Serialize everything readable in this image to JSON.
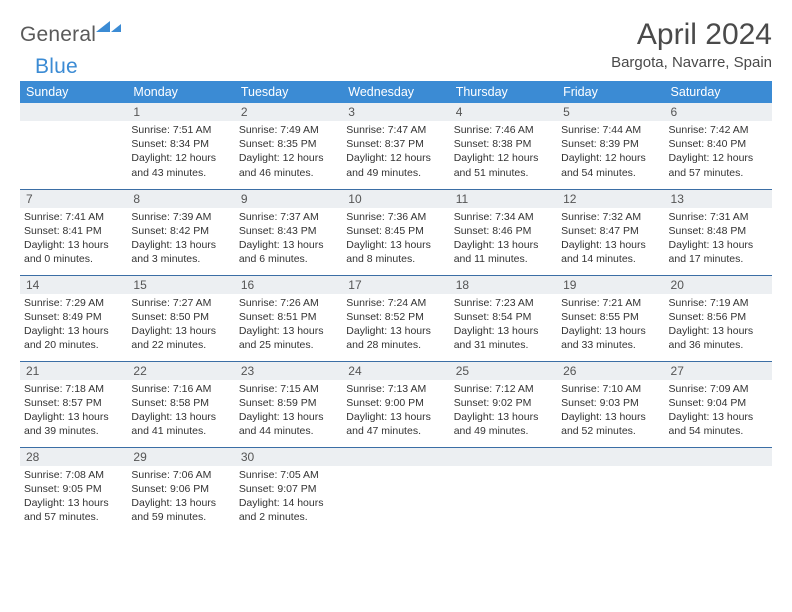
{
  "brand": {
    "text_general": "General",
    "text_blue": "Blue",
    "mark_color": "#3b8bd4"
  },
  "header": {
    "title": "April 2024",
    "subtitle": "Bargota, Navarre, Spain"
  },
  "colors": {
    "header_bg": "#3b8bd4",
    "header_text": "#ffffff",
    "daynum_bg": "#eceff2",
    "row_border": "#3b6ea5",
    "page_bg": "#ffffff",
    "body_text": "#333333",
    "title_text": "#4a4a4a"
  },
  "typography": {
    "title_fontsize": 30,
    "subtitle_fontsize": 15,
    "dayhead_fontsize": 12.5,
    "daynum_fontsize": 12,
    "content_fontsize": 10.5
  },
  "weekdays": [
    "Sunday",
    "Monday",
    "Tuesday",
    "Wednesday",
    "Thursday",
    "Friday",
    "Saturday"
  ],
  "weeks": [
    [
      {
        "day": "",
        "sunrise": "",
        "sunset": "",
        "daylight": ""
      },
      {
        "day": "1",
        "sunrise": "Sunrise: 7:51 AM",
        "sunset": "Sunset: 8:34 PM",
        "daylight": "Daylight: 12 hours and 43 minutes."
      },
      {
        "day": "2",
        "sunrise": "Sunrise: 7:49 AM",
        "sunset": "Sunset: 8:35 PM",
        "daylight": "Daylight: 12 hours and 46 minutes."
      },
      {
        "day": "3",
        "sunrise": "Sunrise: 7:47 AM",
        "sunset": "Sunset: 8:37 PM",
        "daylight": "Daylight: 12 hours and 49 minutes."
      },
      {
        "day": "4",
        "sunrise": "Sunrise: 7:46 AM",
        "sunset": "Sunset: 8:38 PM",
        "daylight": "Daylight: 12 hours and 51 minutes."
      },
      {
        "day": "5",
        "sunrise": "Sunrise: 7:44 AM",
        "sunset": "Sunset: 8:39 PM",
        "daylight": "Daylight: 12 hours and 54 minutes."
      },
      {
        "day": "6",
        "sunrise": "Sunrise: 7:42 AM",
        "sunset": "Sunset: 8:40 PM",
        "daylight": "Daylight: 12 hours and 57 minutes."
      }
    ],
    [
      {
        "day": "7",
        "sunrise": "Sunrise: 7:41 AM",
        "sunset": "Sunset: 8:41 PM",
        "daylight": "Daylight: 13 hours and 0 minutes."
      },
      {
        "day": "8",
        "sunrise": "Sunrise: 7:39 AM",
        "sunset": "Sunset: 8:42 PM",
        "daylight": "Daylight: 13 hours and 3 minutes."
      },
      {
        "day": "9",
        "sunrise": "Sunrise: 7:37 AM",
        "sunset": "Sunset: 8:43 PM",
        "daylight": "Daylight: 13 hours and 6 minutes."
      },
      {
        "day": "10",
        "sunrise": "Sunrise: 7:36 AM",
        "sunset": "Sunset: 8:45 PM",
        "daylight": "Daylight: 13 hours and 8 minutes."
      },
      {
        "day": "11",
        "sunrise": "Sunrise: 7:34 AM",
        "sunset": "Sunset: 8:46 PM",
        "daylight": "Daylight: 13 hours and 11 minutes."
      },
      {
        "day": "12",
        "sunrise": "Sunrise: 7:32 AM",
        "sunset": "Sunset: 8:47 PM",
        "daylight": "Daylight: 13 hours and 14 minutes."
      },
      {
        "day": "13",
        "sunrise": "Sunrise: 7:31 AM",
        "sunset": "Sunset: 8:48 PM",
        "daylight": "Daylight: 13 hours and 17 minutes."
      }
    ],
    [
      {
        "day": "14",
        "sunrise": "Sunrise: 7:29 AM",
        "sunset": "Sunset: 8:49 PM",
        "daylight": "Daylight: 13 hours and 20 minutes."
      },
      {
        "day": "15",
        "sunrise": "Sunrise: 7:27 AM",
        "sunset": "Sunset: 8:50 PM",
        "daylight": "Daylight: 13 hours and 22 minutes."
      },
      {
        "day": "16",
        "sunrise": "Sunrise: 7:26 AM",
        "sunset": "Sunset: 8:51 PM",
        "daylight": "Daylight: 13 hours and 25 minutes."
      },
      {
        "day": "17",
        "sunrise": "Sunrise: 7:24 AM",
        "sunset": "Sunset: 8:52 PM",
        "daylight": "Daylight: 13 hours and 28 minutes."
      },
      {
        "day": "18",
        "sunrise": "Sunrise: 7:23 AM",
        "sunset": "Sunset: 8:54 PM",
        "daylight": "Daylight: 13 hours and 31 minutes."
      },
      {
        "day": "19",
        "sunrise": "Sunrise: 7:21 AM",
        "sunset": "Sunset: 8:55 PM",
        "daylight": "Daylight: 13 hours and 33 minutes."
      },
      {
        "day": "20",
        "sunrise": "Sunrise: 7:19 AM",
        "sunset": "Sunset: 8:56 PM",
        "daylight": "Daylight: 13 hours and 36 minutes."
      }
    ],
    [
      {
        "day": "21",
        "sunrise": "Sunrise: 7:18 AM",
        "sunset": "Sunset: 8:57 PM",
        "daylight": "Daylight: 13 hours and 39 minutes."
      },
      {
        "day": "22",
        "sunrise": "Sunrise: 7:16 AM",
        "sunset": "Sunset: 8:58 PM",
        "daylight": "Daylight: 13 hours and 41 minutes."
      },
      {
        "day": "23",
        "sunrise": "Sunrise: 7:15 AM",
        "sunset": "Sunset: 8:59 PM",
        "daylight": "Daylight: 13 hours and 44 minutes."
      },
      {
        "day": "24",
        "sunrise": "Sunrise: 7:13 AM",
        "sunset": "Sunset: 9:00 PM",
        "daylight": "Daylight: 13 hours and 47 minutes."
      },
      {
        "day": "25",
        "sunrise": "Sunrise: 7:12 AM",
        "sunset": "Sunset: 9:02 PM",
        "daylight": "Daylight: 13 hours and 49 minutes."
      },
      {
        "day": "26",
        "sunrise": "Sunrise: 7:10 AM",
        "sunset": "Sunset: 9:03 PM",
        "daylight": "Daylight: 13 hours and 52 minutes."
      },
      {
        "day": "27",
        "sunrise": "Sunrise: 7:09 AM",
        "sunset": "Sunset: 9:04 PM",
        "daylight": "Daylight: 13 hours and 54 minutes."
      }
    ],
    [
      {
        "day": "28",
        "sunrise": "Sunrise: 7:08 AM",
        "sunset": "Sunset: 9:05 PM",
        "daylight": "Daylight: 13 hours and 57 minutes."
      },
      {
        "day": "29",
        "sunrise": "Sunrise: 7:06 AM",
        "sunset": "Sunset: 9:06 PM",
        "daylight": "Daylight: 13 hours and 59 minutes."
      },
      {
        "day": "30",
        "sunrise": "Sunrise: 7:05 AM",
        "sunset": "Sunset: 9:07 PM",
        "daylight": "Daylight: 14 hours and 2 minutes."
      },
      {
        "day": "",
        "sunrise": "",
        "sunset": "",
        "daylight": ""
      },
      {
        "day": "",
        "sunrise": "",
        "sunset": "",
        "daylight": ""
      },
      {
        "day": "",
        "sunrise": "",
        "sunset": "",
        "daylight": ""
      },
      {
        "day": "",
        "sunrise": "",
        "sunset": "",
        "daylight": ""
      }
    ]
  ]
}
